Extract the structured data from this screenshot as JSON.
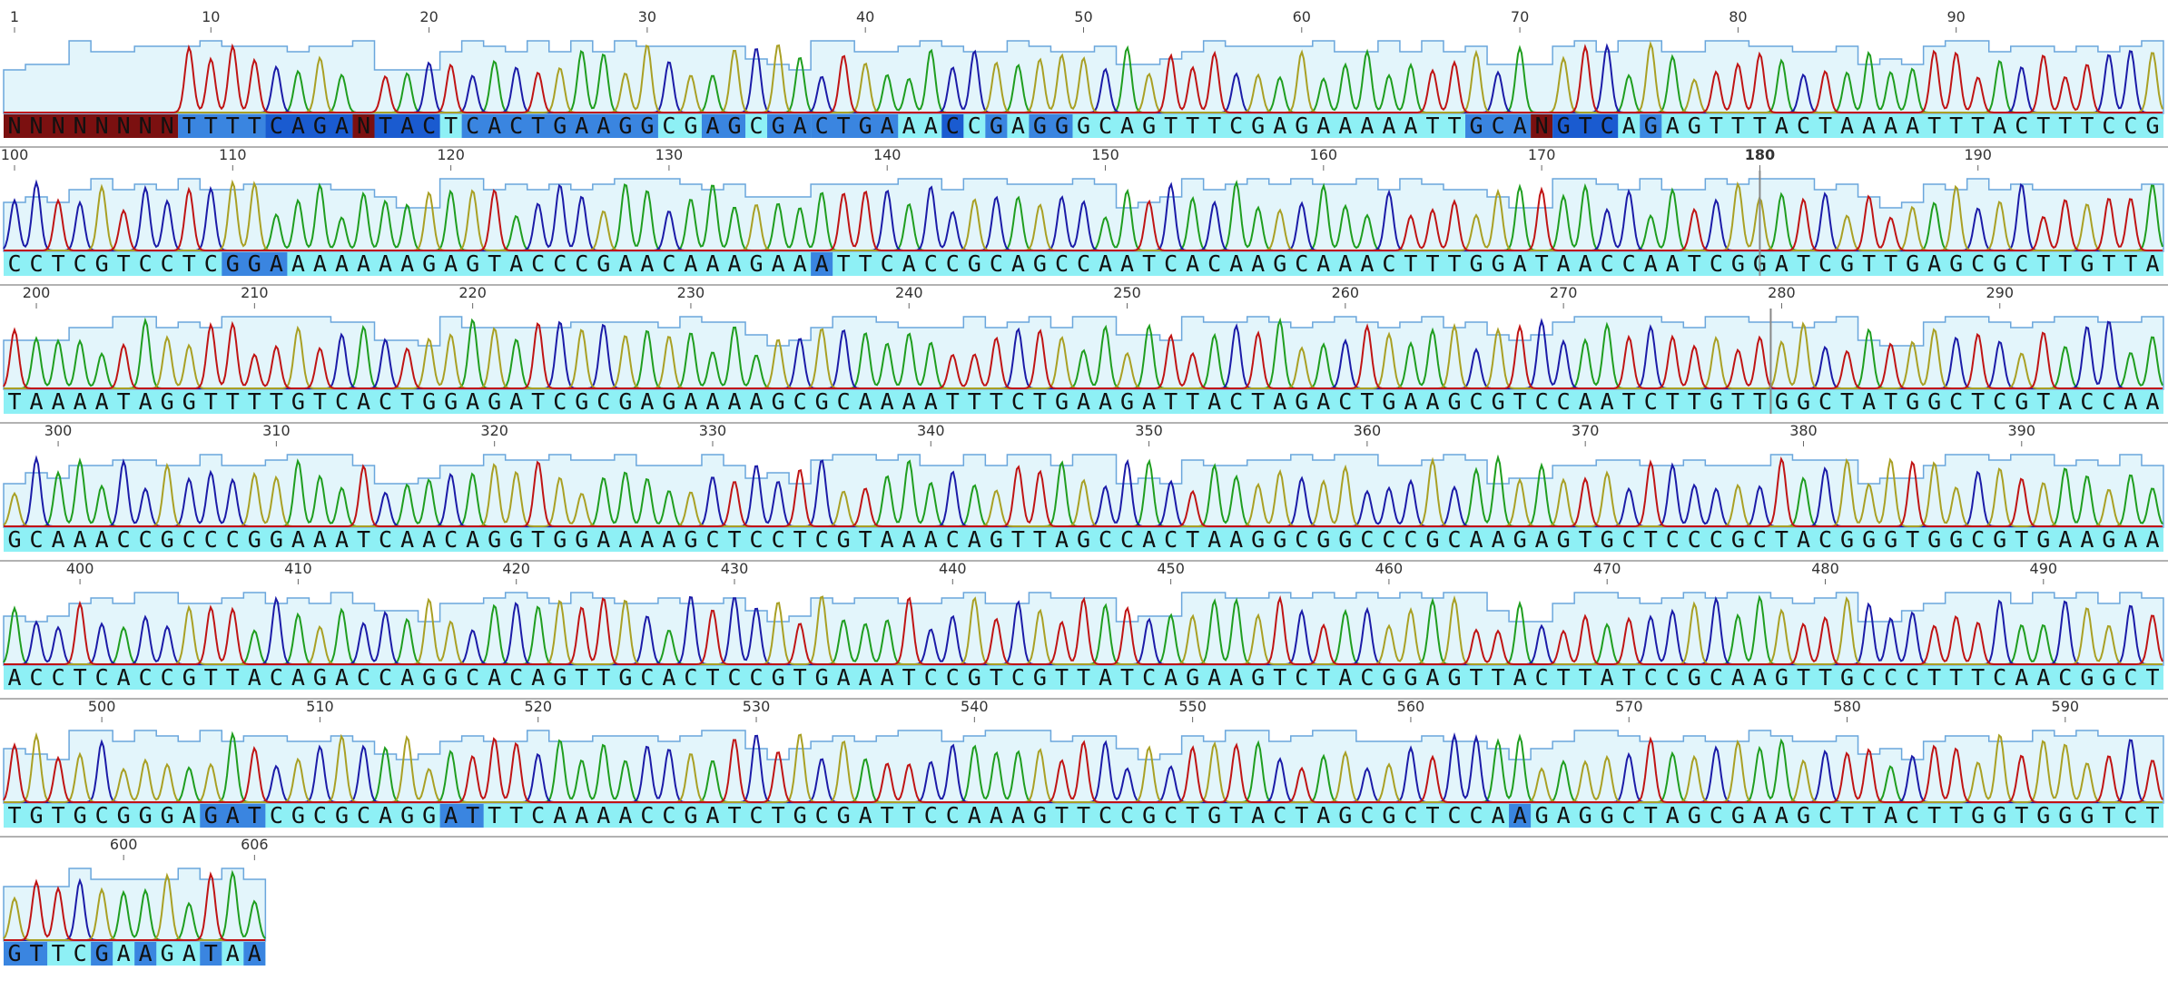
{
  "rows": [
    "NNNNNNNNTTTTCAGANTACTCACTGAAGGCGAGCGACTGAAACCGAGGGCAGTTTCGAGAAAAATTGCANGTCAGAGTTTACTAAAATTTACTTTCCG",
    "CCTCGTCCTCGGAAAAAAAGAGTACCCGAACAAAGAAATTCACCGCAGCCAATCACAAGCAAACTTTGGATAACCAATCGGATCGTTGAGCGCTTGTTA",
    "TAAAATAGGTTTTGTCACTGGAGATCGCGAGAAAAGCGCAAAATTTCTGAAGATTACTAGACTGAAGCGTCCAATCTTGTTGGCTATGGCTCGTACCAA",
    "GCAAACCGCCCGGAAATCAACAGGTGGAAAAGCTCCTCGTAAACAGTTAGCCACTAAGGCGGCCCGCAAGAGTGCTCCCGCTACGGGTGGCGTGAAGAA",
    "ACCTCACCGTTACAGACCAGGCACAGTTGCACTCCGTGAAATCCGTCGTTATCAGAAGTCTACGGAGTTACTTATCCGCAAGTTGCCCTTTCAACGGCT",
    "TGTGCGGGAGATCGCGCAGGATTTCAAAACCGATCTGCGATTCCAAAGTTCCGCTGTACTAGCGCTCCAAGAGGCTAGCGAAGCTTACTTGGTGGGTCT",
    "GTTCGAAGATAA"
  ],
  "position_labels": [
    1,
    10,
    20,
    30,
    40,
    50,
    60,
    70,
    80,
    90,
    100,
    110,
    120,
    130,
    140,
    150,
    160,
    170,
    180,
    190,
    200,
    210,
    220,
    230,
    240,
    250,
    260,
    270,
    280,
    290,
    300,
    310,
    320,
    330,
    340,
    350,
    360,
    370,
    380,
    390,
    400,
    410,
    420,
    430,
    440,
    450,
    460,
    470,
    480,
    490,
    500,
    510,
    520,
    530,
    540,
    550,
    560,
    570,
    580,
    590,
    600,
    606
  ],
  "cursor": 180
}
